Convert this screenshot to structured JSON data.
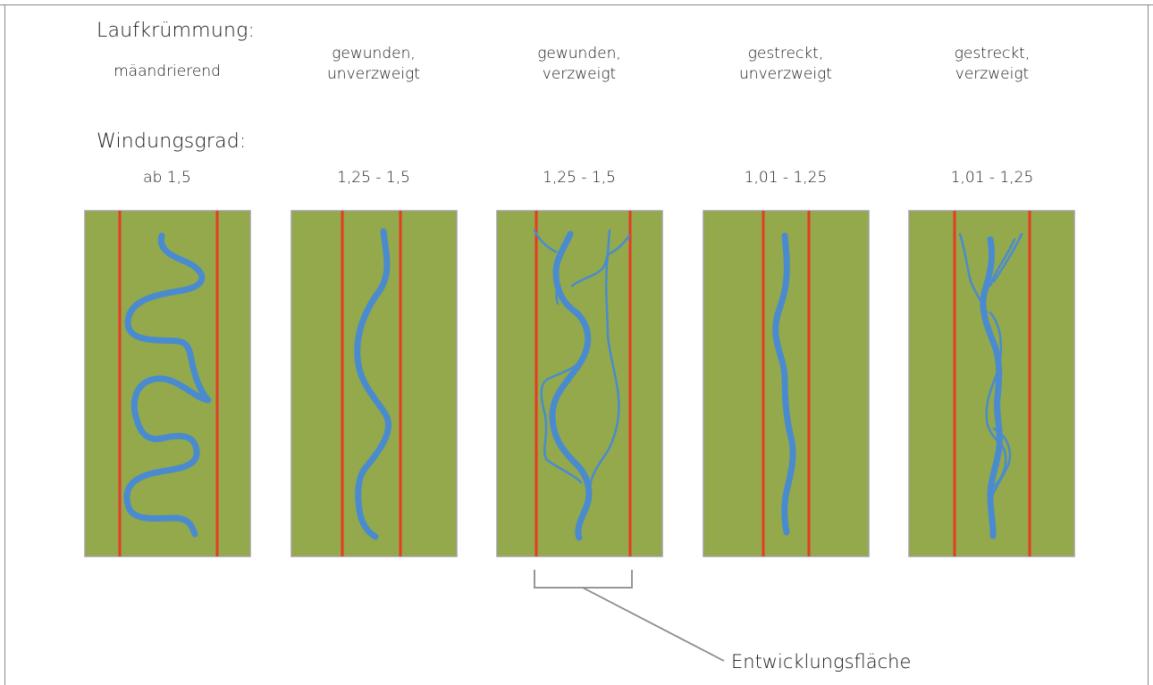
{
  "headings": {
    "curvature": "Laufkrümmung:",
    "sinuosity": "Windungsgrad:"
  },
  "columns": [
    {
      "curvature_line1": "mäandrierend",
      "curvature_line2": "",
      "sinuosity": "ab 1,5"
    },
    {
      "curvature_line1": "gewunden,",
      "curvature_line2": "unverzweigt",
      "sinuosity": "1,25 - 1,5"
    },
    {
      "curvature_line1": "gewunden,",
      "curvature_line2": "verzweigt",
      "sinuosity": "1,25 - 1,5"
    },
    {
      "curvature_line1": "gestreckt,",
      "curvature_line2": "unverzweigt",
      "sinuosity": "1,01 - 1,25"
    },
    {
      "curvature_line1": "gestreckt,",
      "curvature_line2": "verzweigt",
      "sinuosity": "1,01 - 1,25"
    }
  ],
  "annotation": {
    "label": "Entwicklungsfläche"
  },
  "colors": {
    "panel_fill": "#93a94b",
    "panel_border": "#a0a0a0",
    "boundary_line": "#e63b25",
    "river": "#4a8bd0",
    "bracket": "#8a8a8a"
  }
}
